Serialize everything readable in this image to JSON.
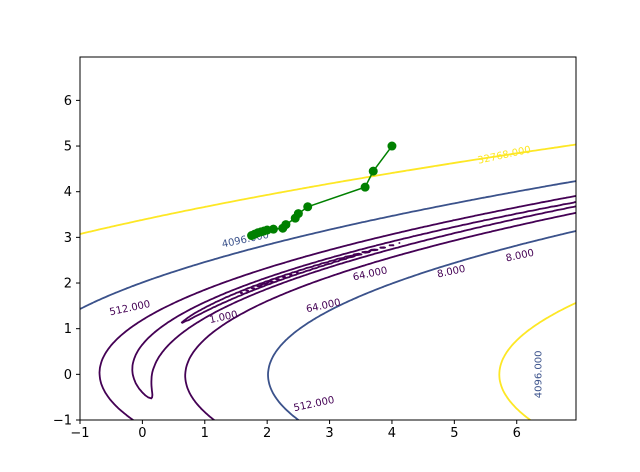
{
  "chart_data": {
    "type": "contour",
    "title": "",
    "xlabel": "",
    "ylabel": "",
    "xlim": [
      -1,
      6.95
    ],
    "ylim": [
      -1,
      6.95
    ],
    "grid": false,
    "x_ticks": [
      -1,
      0,
      1,
      2,
      3,
      4,
      5,
      6
    ],
    "y_ticks": [
      -1,
      0,
      1,
      2,
      3,
      4,
      5,
      6
    ],
    "x_tick_labels": [
      "−1",
      "0",
      "1",
      "2",
      "3",
      "4",
      "5",
      "6"
    ],
    "y_tick_labels": [
      "−1",
      "0",
      "1",
      "2",
      "3",
      "4",
      "5",
      "6"
    ],
    "contour_levels": [
      {
        "value": 1,
        "color": "#440154"
      },
      {
        "value": 8,
        "color": "#440154"
      },
      {
        "value": 64,
        "color": "#440154"
      },
      {
        "value": 512,
        "color": "#440154"
      },
      {
        "value": 4096,
        "color": "#3b528b"
      },
      {
        "value": 32768,
        "color": "#fde725"
      }
    ],
    "contour_labels": [
      {
        "text": "32768.000",
        "x": 5.8,
        "y": 4.8,
        "color": "#fde725"
      },
      {
        "text": "4096.000",
        "x": 1.65,
        "y": 2.95,
        "color": "#3b528b"
      },
      {
        "text": "4096.000",
        "x": 6.35,
        "y": 0.0,
        "color": "#3b528b",
        "rotation": -90
      },
      {
        "text": "512.000",
        "x": -0.2,
        "y": 1.45,
        "color": "#440154"
      },
      {
        "text": "512.000",
        "x": 2.75,
        "y": -0.65,
        "color": "#440154"
      },
      {
        "text": "64.000",
        "x": 3.65,
        "y": 2.2,
        "color": "#440154"
      },
      {
        "text": "64.000",
        "x": 2.9,
        "y": 1.5,
        "color": "#440154"
      },
      {
        "text": "8.000",
        "x": 4.95,
        "y": 2.25,
        "color": "#440154"
      },
      {
        "text": "8.000",
        "x": 6.05,
        "y": 2.6,
        "color": "#440154"
      },
      {
        "text": "1.000",
        "x": 1.3,
        "y": 1.25,
        "color": "#440154"
      }
    ],
    "path": {
      "color": "#008000",
      "points": [
        [
          4.0,
          5.0
        ],
        [
          3.7,
          4.45
        ],
        [
          3.57,
          4.1
        ],
        [
          2.65,
          3.67
        ],
        [
          2.5,
          3.52
        ],
        [
          2.45,
          3.42
        ],
        [
          2.3,
          3.28
        ],
        [
          2.25,
          3.2
        ],
        [
          2.1,
          3.18
        ],
        [
          2.0,
          3.16
        ],
        [
          1.95,
          3.14
        ],
        [
          1.9,
          3.12
        ],
        [
          1.85,
          3.1
        ],
        [
          1.8,
          3.07
        ],
        [
          1.75,
          3.04
        ]
      ]
    }
  }
}
